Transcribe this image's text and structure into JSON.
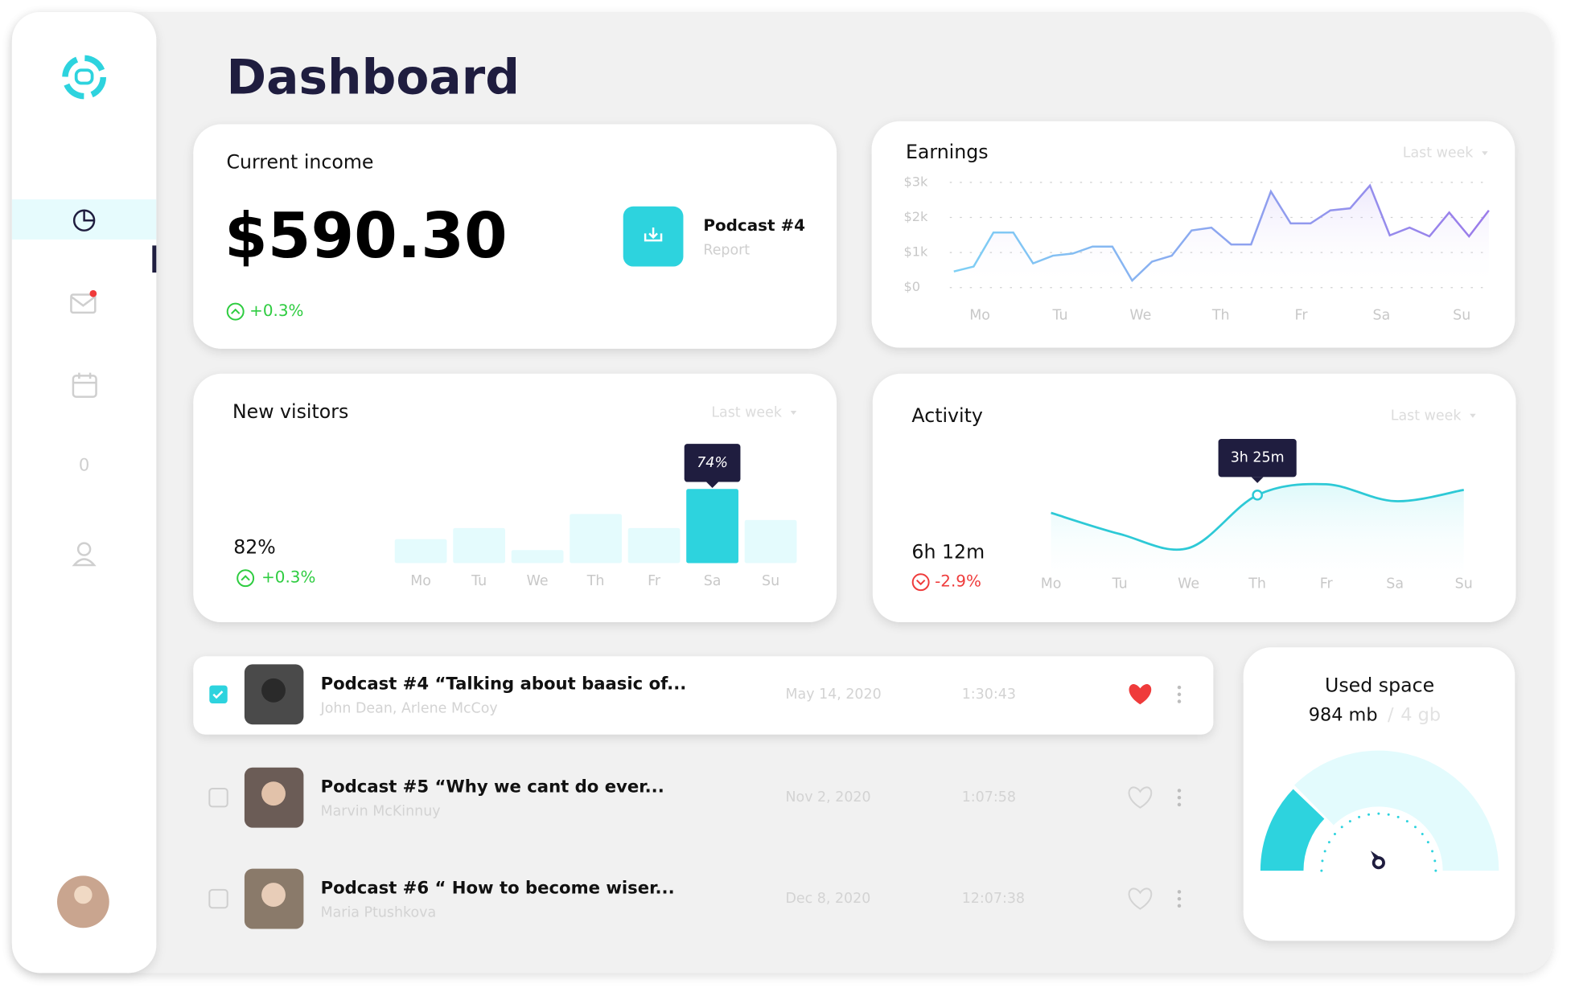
{
  "page_title": "Dashboard",
  "sidebar": {
    "nav_count": "0"
  },
  "income": {
    "title": "Current income",
    "amount": "$590.30",
    "change": "+0.3%",
    "report_title": "Podcast #4",
    "report_label": "Report"
  },
  "earnings": {
    "type": "line",
    "title": "Earnings",
    "period": "Last week",
    "categories": [
      "Mo",
      "Tu",
      "We",
      "Th",
      "Fr",
      "Sa",
      "Su"
    ],
    "values": [
      460,
      600,
      1570,
      1570,
      690,
      910,
      970,
      1170,
      1170,
      200,
      740,
      910,
      1630,
      1710,
      1230,
      1230,
      2740,
      1830,
      1830,
      2200,
      2260,
      2910,
      1490,
      1710,
      1460,
      2140,
      1460,
      2200
    ],
    "ylim": [
      0,
      3000
    ],
    "yticks": [
      {
        "value": 0,
        "label": "$0"
      },
      {
        "value": 1000,
        "label": "$1k"
      },
      {
        "value": 2000,
        "label": "$2k"
      },
      {
        "value": 3000,
        "label": "$3k"
      }
    ],
    "colors": [
      "#7ed0f5",
      "#9b7bea"
    ],
    "grid": true
  },
  "visitors": {
    "type": "bar",
    "title": "New visitors",
    "period": "Last week",
    "total": "82%",
    "change": "+0.3%",
    "categories": [
      "Mo",
      "Tu",
      "We",
      "Th",
      "Fr",
      "Sa",
      "Su"
    ],
    "values": [
      24,
      35,
      13,
      49,
      35,
      74,
      43
    ],
    "value_labels": [
      null,
      null,
      null,
      null,
      null,
      "74%",
      null
    ],
    "color": "#e4fbfd",
    "highlight_color": "#2dd3de"
  },
  "activity": {
    "type": "line",
    "title": "Activity",
    "period": "Last week",
    "total": "6h 12m",
    "change": "-2.9%",
    "categories": [
      "Mo",
      "Tu",
      "We",
      "Th",
      "Fr",
      "Sa",
      "Su"
    ],
    "values": [
      167,
      122,
      92,
      205,
      228,
      192,
      216
    ],
    "value_labels": [
      null,
      null,
      null,
      "3h 25m",
      null,
      null,
      null
    ],
    "color": "#2dc9d6"
  },
  "storage": {
    "type": "gauge",
    "title": "Used space",
    "used": {
      "value": 984,
      "label": "984 mb"
    },
    "total": {
      "value": 4000,
      "label": "4 gb"
    },
    "color": "#2dd3de",
    "track_color": "#e3fbfd"
  },
  "podcasts": [
    {
      "title": "Podcast #4 “Talking about baasic of...",
      "authors": "John Dean, Arlene McCoy",
      "date": "May 14, 2020",
      "duration": "1:30:43",
      "checked": true,
      "liked": true
    },
    {
      "title": "Podcast #5 “Why we cant do ever...",
      "authors": "Marvin McKinnuy",
      "date": "Nov 2, 2020",
      "duration": "1:07:58",
      "checked": false,
      "liked": false
    },
    {
      "title": "Podcast #6 “ How to become wiser...",
      "authors": "Maria Ptushkova",
      "date": "Dec 8, 2020",
      "duration": "12:07:38",
      "checked": false,
      "liked": false
    }
  ]
}
